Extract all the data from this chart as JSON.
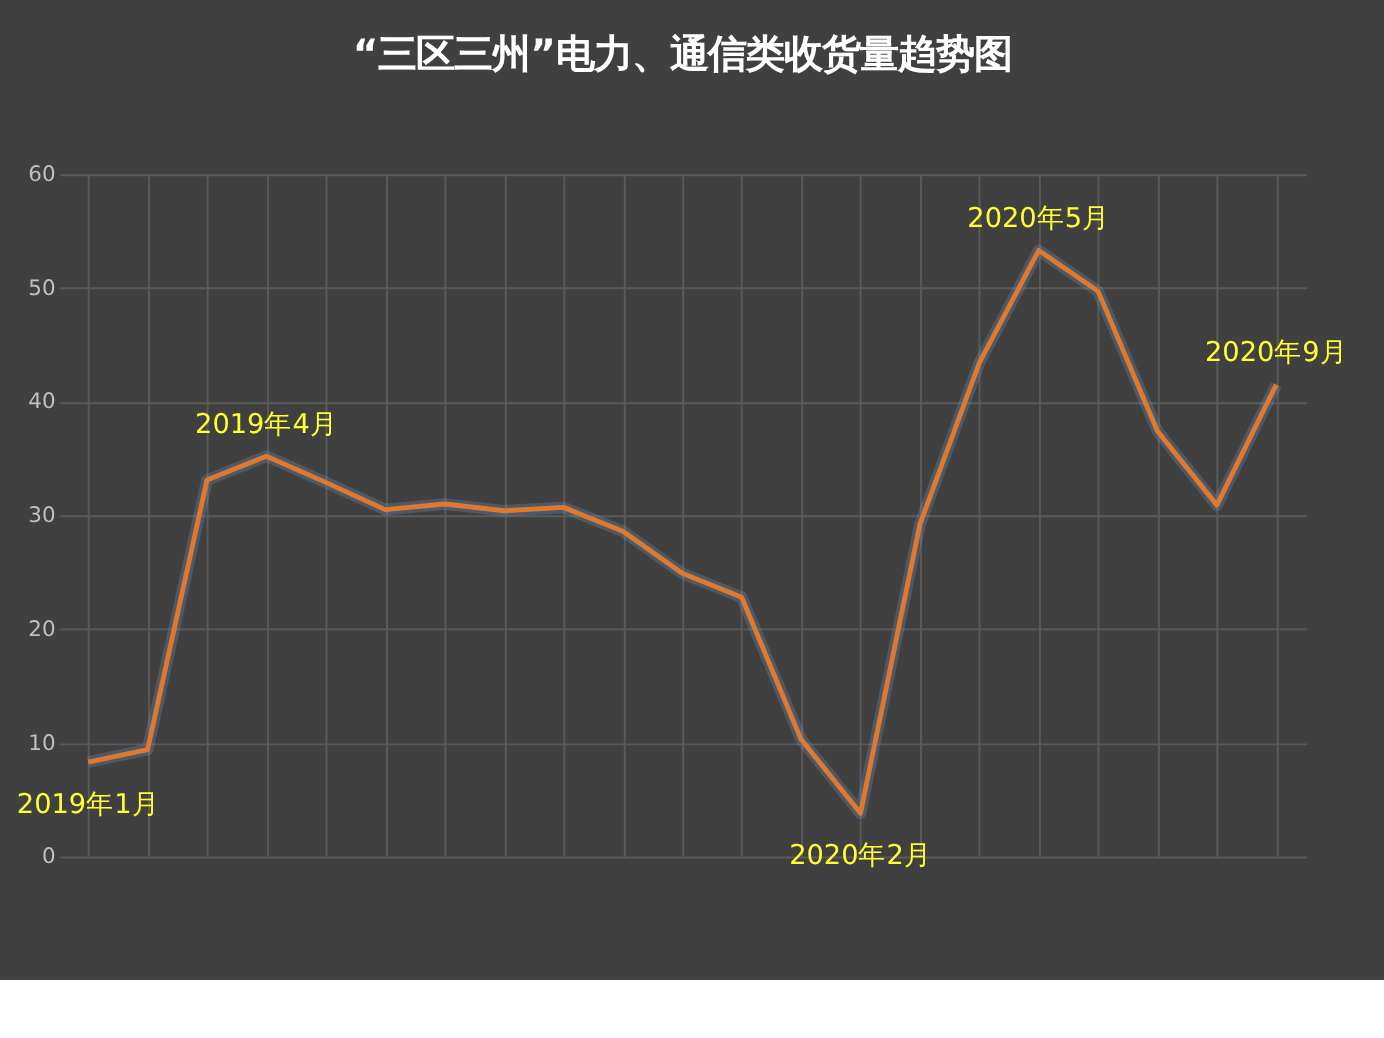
{
  "chart_data": {
    "type": "line",
    "title": "“三区三州”电力、通信类收货量趋势图",
    "categories": [
      null,
      null,
      null,
      null,
      null,
      null,
      null,
      null,
      null,
      null,
      null,
      null,
      null,
      null,
      null,
      null,
      null,
      null,
      null,
      null,
      null
    ],
    "series": [
      {
        "color": "#e0782e",
        "values": [
          8.3,
          9.4,
          33.1,
          35.2,
          32.9,
          30.5,
          31.0,
          30.4,
          30.7,
          28.6,
          24.9,
          22.8,
          10.3,
          3.8,
          29.2,
          43.4,
          53.3,
          49.7,
          37.4,
          30.9,
          41.5
        ]
      }
    ],
    "ylim": [
      0,
      60
    ],
    "yticks": [
      0,
      10,
      20,
      30,
      40,
      50,
      60
    ],
    "grid": true,
    "tick_labels": "y",
    "marker": "none",
    "line_style": "solid",
    "annotations": [
      {
        "text": "2019年1月",
        "y": 8.3
      },
      {
        "text": "2019年4月",
        "y": 35.2
      },
      {
        "text": "2020年2月",
        "y": 3.8
      },
      {
        "text": "2020年5月",
        "y": 53.3
      },
      {
        "text": "2020年9月",
        "y": 41.5
      }
    ]
  }
}
